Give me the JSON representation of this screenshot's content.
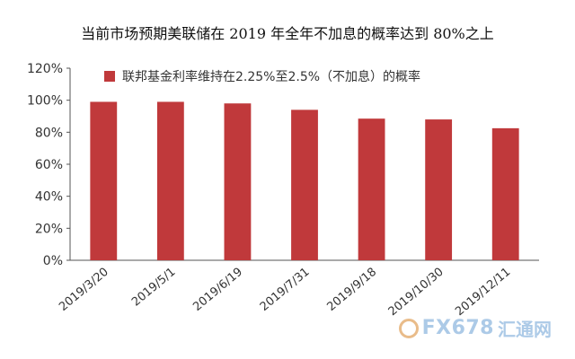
{
  "page": {
    "title": "当前市场预期美联储在 2019 年全年不加息的概率达到 80%之上"
  },
  "chart_data": {
    "type": "bar",
    "categories": [
      "2019/3/20",
      "2019/5/1",
      "2019/6/19",
      "2019/7/31",
      "2019/9/18",
      "2019/10/30",
      "2019/12/11"
    ],
    "series": [
      {
        "name": "联邦基金利率维持在2.25%至2.5%（不加息）的概率",
        "values": [
          99,
          99,
          98,
          94,
          88.5,
          88,
          82.5
        ],
        "color": "#c0393b"
      }
    ],
    "ylim": [
      0,
      120
    ],
    "yticks": [
      "0%",
      "20%",
      "40%",
      "60%",
      "80%",
      "100%",
      "120%"
    ],
    "grid": false,
    "legend_position": "top-left"
  },
  "watermark": {
    "text": "FX678",
    "text2": "汇通网"
  }
}
